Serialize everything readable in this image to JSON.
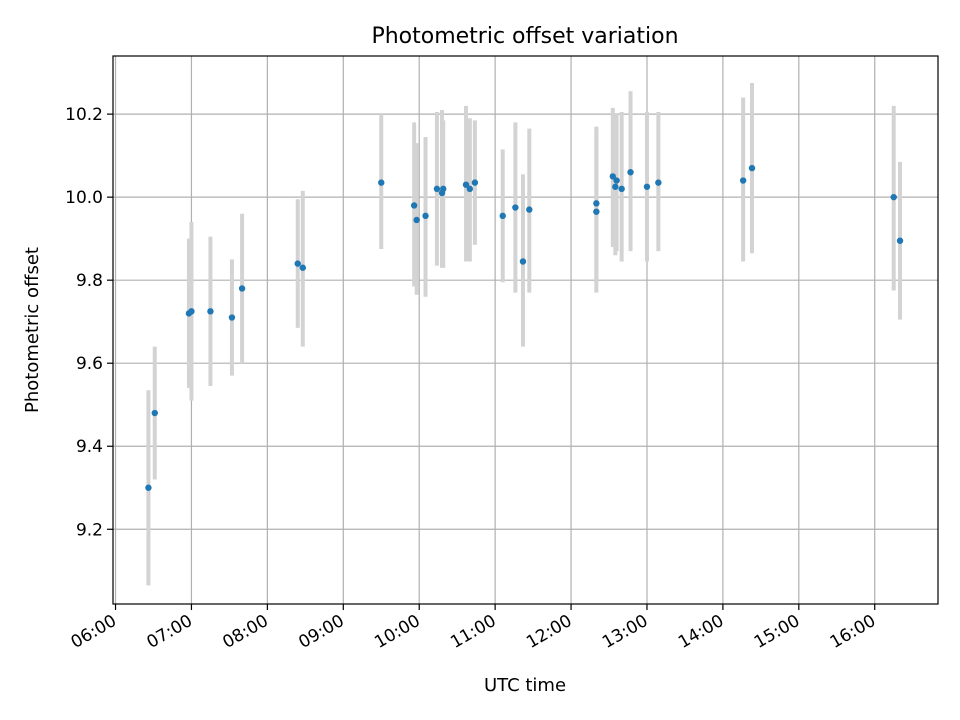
{
  "chart_data": {
    "type": "scatter",
    "title": "Photometric offset variation",
    "xlabel": "UTC time",
    "ylabel": "Photometric offset",
    "x_unit": "UTC time (HH:MM)",
    "xlim": [
      "05:58",
      "16:50"
    ],
    "ylim": [
      9.02,
      10.34
    ],
    "xticks": [
      "06:00",
      "07:00",
      "08:00",
      "09:00",
      "10:00",
      "11:00",
      "12:00",
      "13:00",
      "14:00",
      "15:00",
      "16:00"
    ],
    "yticks": [
      9.2,
      9.4,
      9.6,
      9.8,
      10.0,
      10.2
    ],
    "grid": true,
    "point_color": "#1f77b4",
    "errorbar_color": "#d3d3d3",
    "series": [
      {
        "points": [
          {
            "x": "06:26",
            "y": 9.3,
            "ylow": 9.065,
            "yhigh": 9.535
          },
          {
            "x": "06:31",
            "y": 9.48,
            "ylow": 9.32,
            "yhigh": 9.64
          },
          {
            "x": "06:58",
            "y": 9.72,
            "ylow": 9.54,
            "yhigh": 9.9
          },
          {
            "x": "07:00",
            "y": 9.725,
            "ylow": 9.51,
            "yhigh": 9.94
          },
          {
            "x": "07:15",
            "y": 9.725,
            "ylow": 9.545,
            "yhigh": 9.905
          },
          {
            "x": "07:32",
            "y": 9.71,
            "ylow": 9.57,
            "yhigh": 9.85
          },
          {
            "x": "07:40",
            "y": 9.78,
            "ylow": 9.6,
            "yhigh": 9.96
          },
          {
            "x": "08:24",
            "y": 9.84,
            "ylow": 9.685,
            "yhigh": 9.995
          },
          {
            "x": "08:28",
            "y": 9.83,
            "ylow": 9.64,
            "yhigh": 10.015
          },
          {
            "x": "09:30",
            "y": 10.035,
            "ylow": 9.875,
            "yhigh": 10.2
          },
          {
            "x": "09:56",
            "y": 9.98,
            "ylow": 9.785,
            "yhigh": 10.18
          },
          {
            "x": "09:58",
            "y": 9.945,
            "ylow": 9.765,
            "yhigh": 10.13
          },
          {
            "x": "10:05",
            "y": 9.955,
            "ylow": 9.76,
            "yhigh": 10.145
          },
          {
            "x": "10:14",
            "y": 10.02,
            "ylow": 9.835,
            "yhigh": 10.205
          },
          {
            "x": "10:18",
            "y": 10.01,
            "ylow": 9.83,
            "yhigh": 10.21
          },
          {
            "x": "10:19",
            "y": 10.02,
            "ylow": 9.83,
            "yhigh": 10.185
          },
          {
            "x": "10:37",
            "y": 10.03,
            "ylow": 9.845,
            "yhigh": 10.22
          },
          {
            "x": "10:40",
            "y": 10.02,
            "ylow": 9.845,
            "yhigh": 10.19
          },
          {
            "x": "10:44",
            "y": 10.035,
            "ylow": 9.885,
            "yhigh": 10.185
          },
          {
            "x": "11:06",
            "y": 9.955,
            "ylow": 9.795,
            "yhigh": 10.115
          },
          {
            "x": "11:16",
            "y": 9.975,
            "ylow": 9.77,
            "yhigh": 10.18
          },
          {
            "x": "11:22",
            "y": 9.845,
            "ylow": 9.64,
            "yhigh": 10.055
          },
          {
            "x": "11:27",
            "y": 9.97,
            "ylow": 9.77,
            "yhigh": 10.165
          },
          {
            "x": "12:20",
            "y": 9.985,
            "ylow": 9.795,
            "yhigh": 10.17
          },
          {
            "x": "12:20",
            "y": 9.965,
            "ylow": 9.77,
            "yhigh": 10.165
          },
          {
            "x": "12:33",
            "y": 10.05,
            "ylow": 9.88,
            "yhigh": 10.215
          },
          {
            "x": "12:35",
            "y": 10.025,
            "ylow": 9.86,
            "yhigh": 10.2
          },
          {
            "x": "12:36",
            "y": 10.04,
            "ylow": 9.87,
            "yhigh": 10.2
          },
          {
            "x": "12:40",
            "y": 10.02,
            "ylow": 9.845,
            "yhigh": 10.205
          },
          {
            "x": "12:47",
            "y": 10.06,
            "ylow": 9.87,
            "yhigh": 10.255
          },
          {
            "x": "13:00",
            "y": 10.025,
            "ylow": 9.845,
            "yhigh": 10.205
          },
          {
            "x": "13:09",
            "y": 10.035,
            "ylow": 9.87,
            "yhigh": 10.205
          },
          {
            "x": "14:16",
            "y": 10.04,
            "ylow": 9.845,
            "yhigh": 10.24
          },
          {
            "x": "14:23",
            "y": 10.07,
            "ylow": 9.865,
            "yhigh": 10.275
          },
          {
            "x": "16:15",
            "y": 10.0,
            "ylow": 9.775,
            "yhigh": 10.22
          },
          {
            "x": "16:20",
            "y": 9.895,
            "ylow": 9.705,
            "yhigh": 10.085
          }
        ]
      }
    ]
  }
}
